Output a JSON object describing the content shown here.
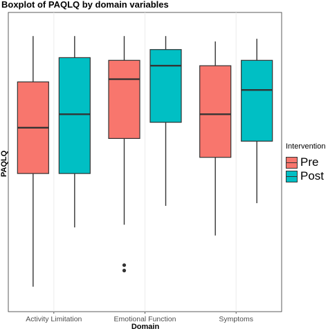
{
  "chart_data": {
    "type": "boxplot",
    "title": "Boxplot of PAQLQ by domain variables",
    "xlabel": "Domain",
    "ylabel": "PAQLQ",
    "categories": [
      "Activity Limitation",
      "Emotional Function",
      "Symptoms"
    ],
    "ylim": [
      0,
      100
    ],
    "grid": true,
    "legend": {
      "title": "Intervention",
      "position": "right"
    },
    "series": [
      {
        "name": "Pre",
        "color": "#F8766D",
        "boxes": [
          {
            "category": "Activity Limitation",
            "whisker_low": 9,
            "q1": 51,
            "median": 68,
            "q3": 85,
            "whisker_high": 102,
            "outliers": []
          },
          {
            "category": "Emotional Function",
            "whisker_low": 32,
            "q1": 64,
            "median": 86,
            "q3": 93,
            "whisker_high": 102,
            "outliers": [
              15,
              17
            ]
          },
          {
            "category": "Symptoms",
            "whisker_low": 28,
            "q1": 57,
            "median": 73,
            "q3": 91,
            "whisker_high": 100,
            "outliers": []
          }
        ]
      },
      {
        "name": "Post",
        "color": "#00BFC4",
        "boxes": [
          {
            "category": "Activity Limitation",
            "whisker_low": 31,
            "q1": 51,
            "median": 73,
            "q3": 94,
            "whisker_high": 102,
            "outliers": []
          },
          {
            "category": "Emotional Function",
            "whisker_low": 39,
            "q1": 70,
            "median": 91,
            "q3": 97,
            "whisker_high": 102,
            "outliers": []
          },
          {
            "category": "Symptoms",
            "whisker_low": 40,
            "q1": 63,
            "median": 82,
            "q3": 93,
            "whisker_high": 101,
            "outliers": []
          }
        ]
      }
    ]
  }
}
